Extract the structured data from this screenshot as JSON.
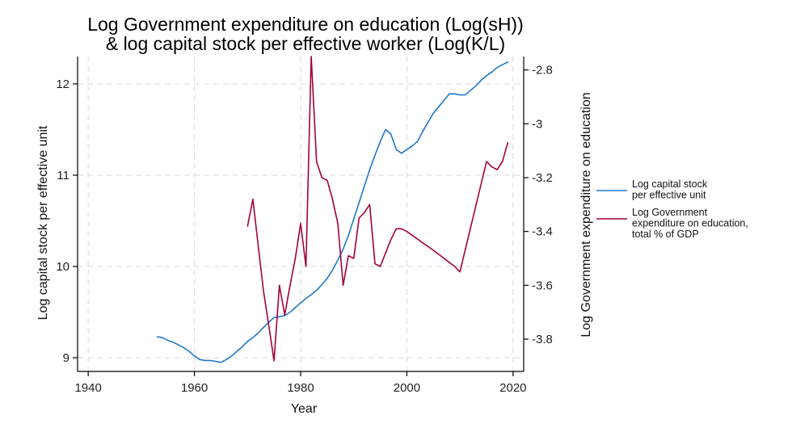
{
  "chart_data": {
    "type": "line",
    "title": [
      "Log Government expenditure on education (Log(sH))",
      "& log capital stock per effective worker (Log(K/L)"
    ],
    "xlabel": "Year",
    "ylabel_left": "Log capital stock per effective unit",
    "ylabel_right": "Log Government expenditure on education",
    "xlim": [
      1938,
      2022
    ],
    "ylim_left": [
      8.85,
      12.3
    ],
    "ylim_right": [
      -3.92,
      -2.75
    ],
    "xticks": [
      1940,
      1960,
      1980,
      2000,
      2020
    ],
    "yticks_left": [
      9,
      10,
      11,
      12
    ],
    "yticks_right": [
      -3.8,
      -3.6,
      -3.4,
      -3.2,
      -3,
      -2.8
    ],
    "xtick_labels": [
      "1940",
      "1960",
      "1980",
      "2000",
      "2020"
    ],
    "ytick_labels_left": [
      "9",
      "10",
      "11",
      "12"
    ],
    "ytick_labels_right": [
      "-3.8",
      "-3.6",
      "-3.4",
      "-3.2",
      "-3",
      "-2.8"
    ],
    "grid": true,
    "legend_position": "right",
    "series": [
      {
        "name": "Log capital stock per effective unit",
        "legend_lines": [
          "Log capital stock",
          "per effective unit"
        ],
        "axis": "left",
        "color": "#1f77c9",
        "x": [
          1953,
          1954,
          1955,
          1956,
          1957,
          1958,
          1959,
          1960,
          1961,
          1962,
          1963,
          1964,
          1965,
          1966,
          1967,
          1968,
          1969,
          1970,
          1971,
          1972,
          1973,
          1974,
          1975,
          1976,
          1977,
          1978,
          1979,
          1980,
          1981,
          1982,
          1983,
          1984,
          1985,
          1986,
          1987,
          1988,
          1989,
          1990,
          1991,
          1992,
          1993,
          1994,
          1995,
          1996,
          1997,
          1998,
          1999,
          2000,
          2001,
          2002,
          2003,
          2004,
          2005,
          2006,
          2007,
          2008,
          2009,
          2010,
          2011,
          2012,
          2013,
          2014,
          2015,
          2016,
          2017,
          2018,
          2019
        ],
        "y": [
          9.23,
          9.22,
          9.19,
          9.17,
          9.14,
          9.11,
          9.07,
          9.02,
          8.98,
          8.97,
          8.97,
          8.96,
          8.95,
          8.98,
          9.02,
          9.07,
          9.12,
          9.18,
          9.22,
          9.27,
          9.33,
          9.39,
          9.44,
          9.45,
          9.46,
          9.5,
          9.55,
          9.6,
          9.65,
          9.69,
          9.74,
          9.8,
          9.87,
          9.96,
          10.07,
          10.19,
          10.34,
          10.52,
          10.7,
          10.88,
          11.06,
          11.22,
          11.37,
          11.5,
          11.45,
          11.28,
          11.24,
          11.28,
          11.32,
          11.37,
          11.48,
          11.58,
          11.68,
          11.75,
          11.82,
          11.89,
          11.89,
          11.88,
          11.88,
          11.93,
          11.98,
          12.04,
          12.09,
          12.13,
          12.18,
          12.21,
          12.24
        ]
      },
      {
        "name": "Log Government expenditure on education, total % of GDP",
        "legend_lines": [
          "Log Government",
          "expenditure on education,",
          "total % of GDP"
        ],
        "axis": "right",
        "color": "#a3003b",
        "x": [
          1970,
          1971,
          1972,
          1973,
          1974,
          1975,
          1976,
          1977,
          1978,
          1979,
          1980,
          1981,
          1982,
          1983,
          1984,
          1985,
          1986,
          1987,
          1988,
          1989,
          1990,
          1991,
          1992,
          1993,
          1994,
          1995,
          1996,
          1997,
          1998,
          1999,
          2000,
          2005,
          2009,
          2010,
          2015,
          2016,
          2017,
          2018,
          2019
        ],
        "y": [
          -3.38,
          -3.28,
          -3.45,
          -3.62,
          -3.75,
          -3.88,
          -3.6,
          -3.71,
          -3.6,
          -3.5,
          -3.37,
          -3.53,
          -2.75,
          -3.14,
          -3.2,
          -3.21,
          -3.28,
          -3.37,
          -3.6,
          -3.49,
          -3.5,
          -3.35,
          -3.33,
          -3.3,
          -3.52,
          -3.53,
          -3.48,
          -3.43,
          -3.39,
          -3.39,
          -3.4,
          -3.47,
          -3.53,
          -3.55,
          -3.14,
          -3.16,
          -3.17,
          -3.14,
          -3.07
        ]
      }
    ]
  }
}
